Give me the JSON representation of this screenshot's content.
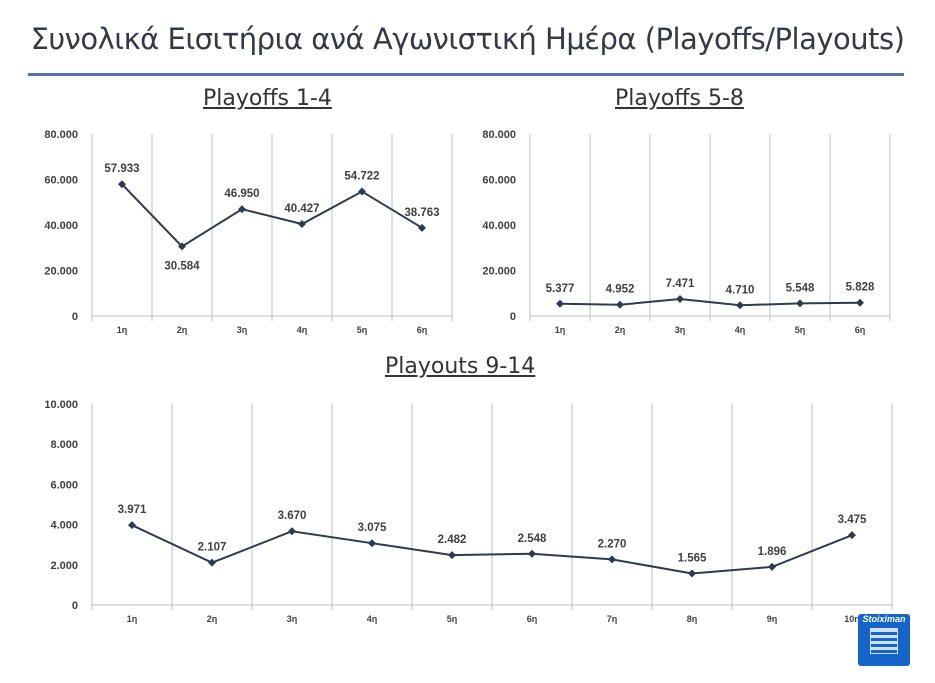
{
  "title": "Συνολικά Εισιτήρια ανά Αγωνιστική Ημέρα (Playoffs/Playouts)",
  "logo_text": "Stoiximan",
  "chart_data": [
    {
      "type": "line",
      "title": "Playoffs 1-4",
      "categories": [
        "1η",
        "2η",
        "3η",
        "4η",
        "5η",
        "6η"
      ],
      "values": [
        57933,
        30584,
        46950,
        40427,
        54722,
        38763
      ],
      "labels": [
        "57.933",
        "30.584",
        "46.950",
        "40.427",
        "54.722",
        "38.763"
      ],
      "label_pos": [
        "above",
        "below",
        "above",
        "above",
        "above",
        "above"
      ],
      "ylim": [
        0,
        80000
      ],
      "yticks": [
        "0",
        "20.000",
        "40.000",
        "60.000",
        "80.000"
      ],
      "color": "#2f3a4f"
    },
    {
      "type": "line",
      "title": "Playoffs 5-8",
      "categories": [
        "1η",
        "2η",
        "3η",
        "4η",
        "5η",
        "6η"
      ],
      "values": [
        5377,
        4952,
        7471,
        4710,
        5548,
        5828
      ],
      "labels": [
        "5.377",
        "4.952",
        "7.471",
        "4.710",
        "5.548",
        "5.828"
      ],
      "label_pos": [
        "above",
        "above",
        "above",
        "above",
        "above",
        "above"
      ],
      "ylim": [
        0,
        80000
      ],
      "yticks": [
        "0",
        "20.000",
        "40.000",
        "60.000",
        "80.000"
      ],
      "color": "#2f3a4f"
    },
    {
      "type": "line",
      "title": "Playouts 9-14",
      "categories": [
        "1η",
        "2η",
        "3η",
        "4η",
        "5η",
        "6η",
        "7η",
        "8η",
        "9η",
        "10η"
      ],
      "values": [
        3971,
        2107,
        3670,
        3075,
        2482,
        2548,
        2270,
        1565,
        1896,
        3475
      ],
      "labels": [
        "3.971",
        "2.107",
        "3.670",
        "3.075",
        "2.482",
        "2.548",
        "2.270",
        "1.565",
        "1.896",
        "3.475"
      ],
      "label_pos": [
        "above",
        "above",
        "above",
        "above",
        "above",
        "above",
        "above",
        "above",
        "above",
        "above"
      ],
      "ylim": [
        0,
        10000
      ],
      "yticks": [
        "0",
        "2.000",
        "4.000",
        "6.000",
        "8.000",
        "10.000"
      ],
      "color": "#2f3a4f"
    }
  ]
}
